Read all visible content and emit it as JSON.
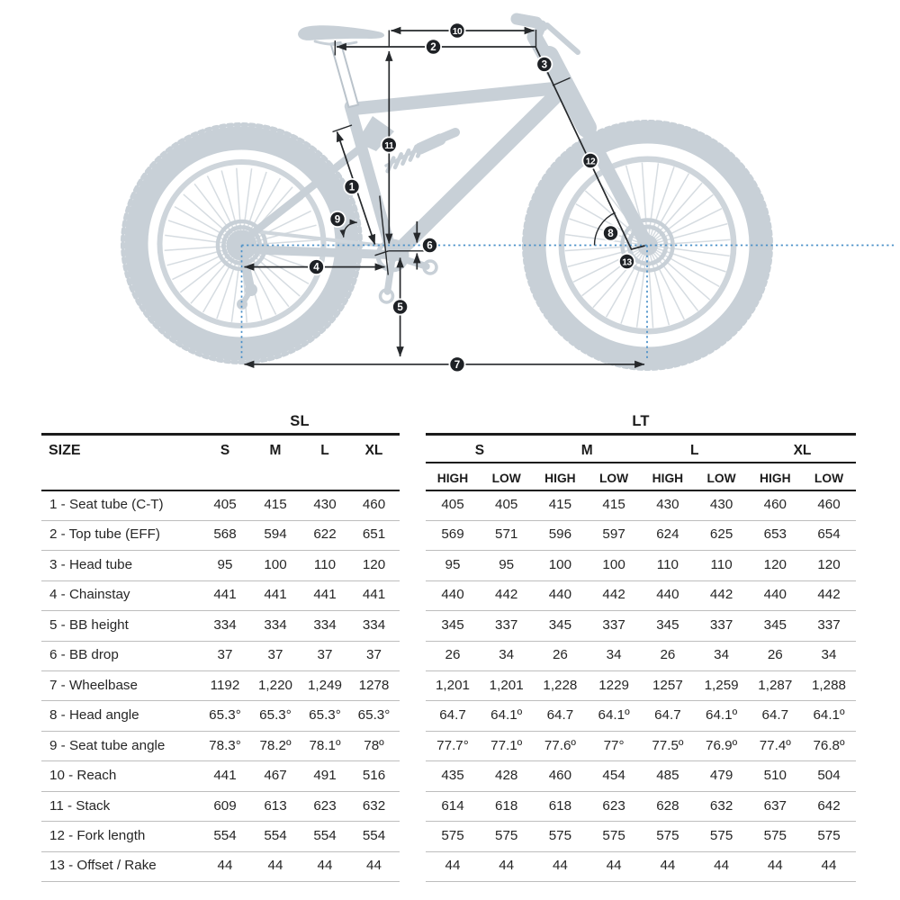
{
  "diagram": {
    "markers": [
      "1",
      "2",
      "3",
      "4",
      "5",
      "6",
      "7",
      "8",
      "9",
      "10",
      "11",
      "12",
      "13"
    ],
    "colors": {
      "silhouette": "#c8d0d7",
      "spokes": "#d6dce1",
      "annotation": "#26292c",
      "reference_line": "#4a90c8"
    }
  },
  "table": {
    "left": {
      "group_label": "SL",
      "size_header": "SIZE",
      "columns": [
        "S",
        "M",
        "L",
        "XL"
      ]
    },
    "right": {
      "group_label": "LT",
      "columns": [
        "S",
        "M",
        "L",
        "XL"
      ],
      "sub_columns": [
        "HIGH",
        "LOW",
        "HIGH",
        "LOW",
        "HIGH",
        "LOW",
        "HIGH",
        "LOW"
      ]
    },
    "rows": [
      {
        "label": "1 - Seat tube (C-T)",
        "sl": [
          "405",
          "415",
          "430",
          "460"
        ],
        "lt": [
          "405",
          "405",
          "415",
          "415",
          "430",
          "430",
          "460",
          "460"
        ]
      },
      {
        "label": "2 - Top tube (EFF)",
        "sl": [
          "568",
          "594",
          "622",
          "651"
        ],
        "lt": [
          "569",
          "571",
          "596",
          "597",
          "624",
          "625",
          "653",
          "654"
        ]
      },
      {
        "label": "3 - Head tube",
        "sl": [
          "95",
          "100",
          "110",
          "120"
        ],
        "lt": [
          "95",
          "95",
          "100",
          "100",
          "110",
          "110",
          "120",
          "120"
        ]
      },
      {
        "label": "4 - Chainstay",
        "sl": [
          "441",
          "441",
          "441",
          "441"
        ],
        "lt": [
          "440",
          "442",
          "440",
          "442",
          "440",
          "442",
          "440",
          "442"
        ]
      },
      {
        "label": "5 - BB height",
        "sl": [
          "334",
          "334",
          "334",
          "334"
        ],
        "lt": [
          "345",
          "337",
          "345",
          "337",
          "345",
          "337",
          "345",
          "337"
        ]
      },
      {
        "label": "6 - BB drop",
        "sl": [
          "37",
          "37",
          "37",
          "37"
        ],
        "lt": [
          "26",
          "34",
          "26",
          "34",
          "26",
          "34",
          "26",
          "34"
        ]
      },
      {
        "label": "7 - Wheelbase",
        "sl": [
          "1192",
          "1,220",
          "1,249",
          "1278"
        ],
        "lt": [
          "1,201",
          "1,201",
          "1,228",
          "1229",
          "1257",
          "1,259",
          "1,287",
          "1,288"
        ]
      },
      {
        "label": "8 - Head angle",
        "sl": [
          "65.3°",
          "65.3°",
          "65.3°",
          "65.3°"
        ],
        "lt": [
          "64.7",
          "64.1º",
          "64.7",
          "64.1º",
          "64.7",
          "64.1º",
          "64.7",
          "64.1º"
        ]
      },
      {
        "label": "9 - Seat tube angle",
        "sl": [
          "78.3°",
          "78.2º",
          "78.1º",
          "78º"
        ],
        "lt": [
          "77.7°",
          "77.1º",
          "77.6º",
          "77°",
          "77.5º",
          "76.9º",
          "77.4º",
          "76.8º"
        ]
      },
      {
        "label": "10 - Reach",
        "sl": [
          "441",
          "467",
          "491",
          "516"
        ],
        "lt": [
          "435",
          "428",
          "460",
          "454",
          "485",
          "479",
          "510",
          "504"
        ]
      },
      {
        "label": "11 - Stack",
        "sl": [
          "609",
          "613",
          "623",
          "632"
        ],
        "lt": [
          "614",
          "618",
          "618",
          "623",
          "628",
          "632",
          "637",
          "642"
        ]
      },
      {
        "label": "12 - Fork length",
        "sl": [
          "554",
          "554",
          "554",
          "554"
        ],
        "lt": [
          "575",
          "575",
          "575",
          "575",
          "575",
          "575",
          "575",
          "575"
        ]
      },
      {
        "label": "13 - Offset / Rake",
        "sl": [
          "44",
          "44",
          "44",
          "44"
        ],
        "lt": [
          "44",
          "44",
          "44",
          "44",
          "44",
          "44",
          "44",
          "44"
        ]
      }
    ]
  }
}
